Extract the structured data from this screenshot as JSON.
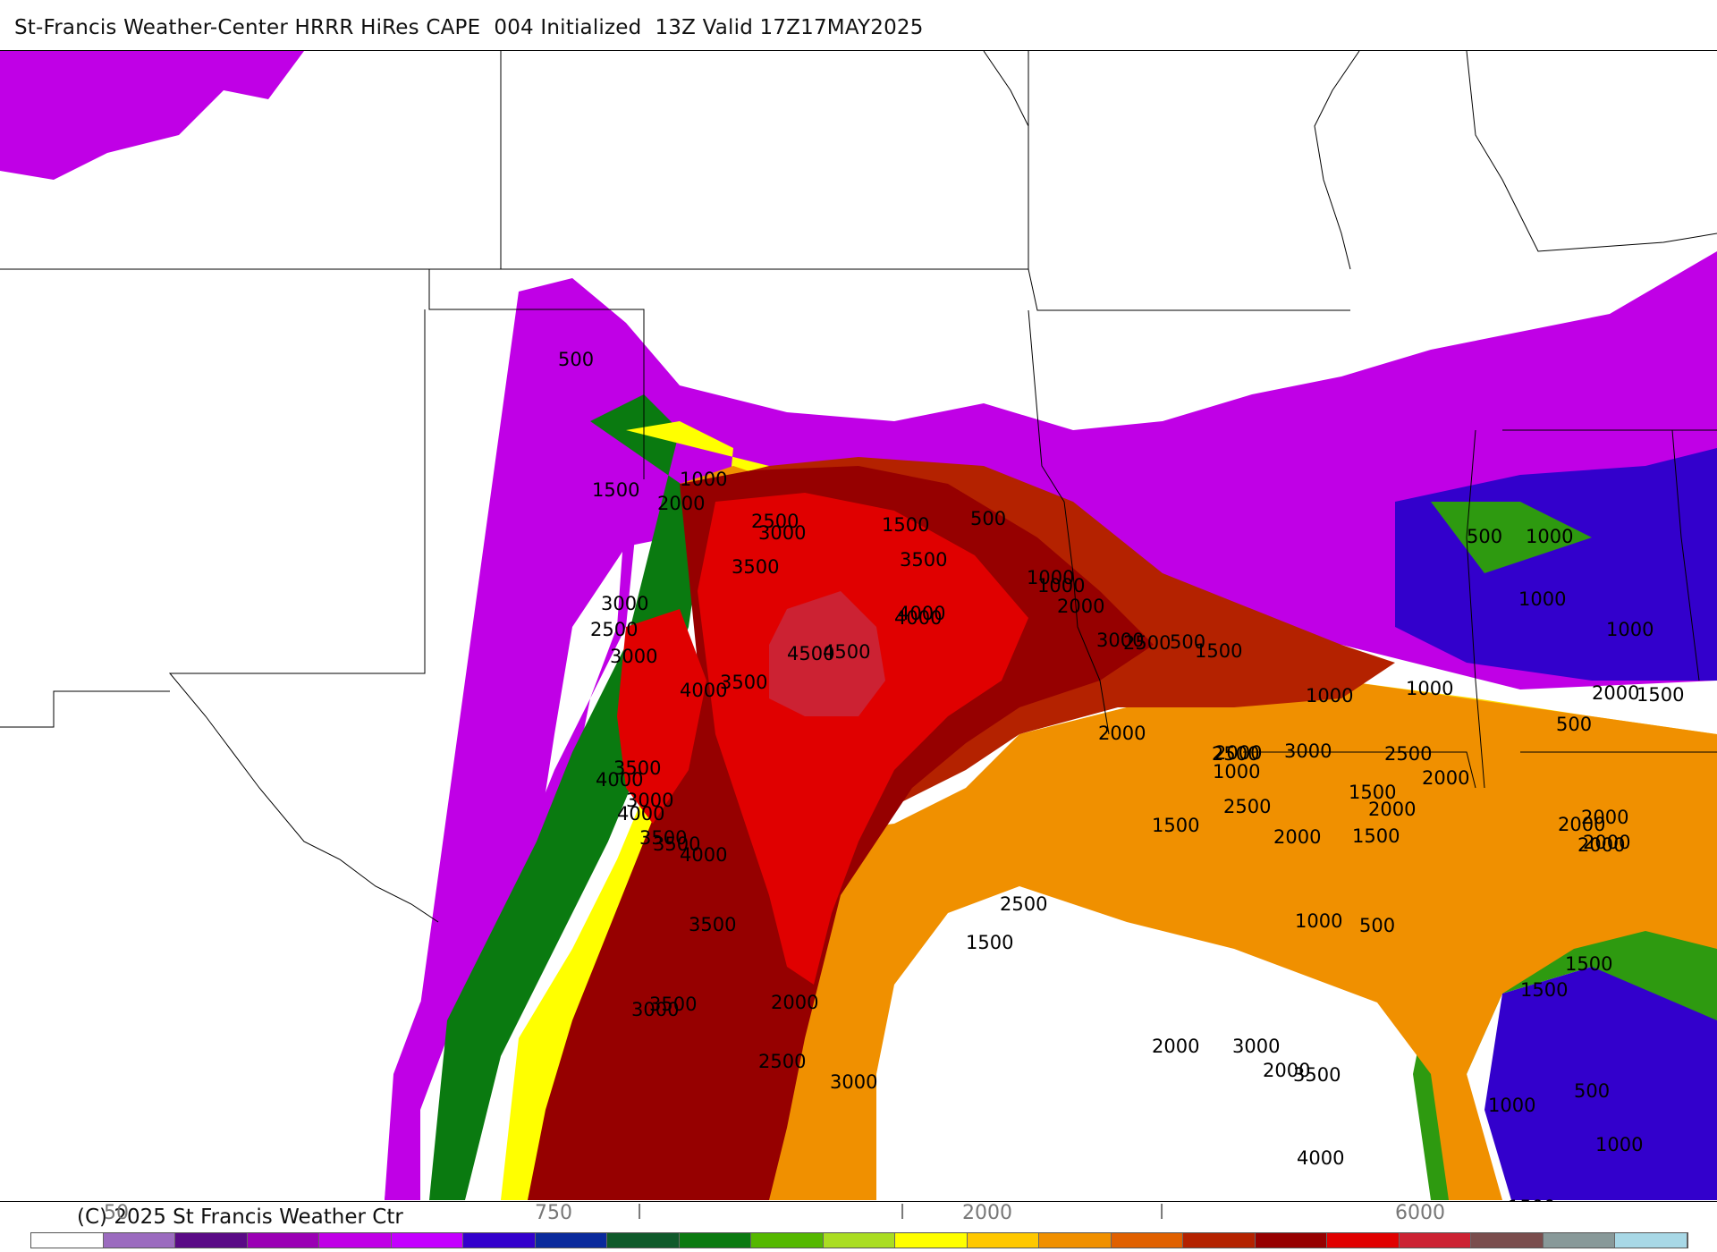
{
  "title": "St-Francis Weather-Center HRRR HiRes CAPE  004 Initialized  13Z Valid 17Z17MAY2025",
  "credit": "(C) 2025 St Francis Weather Ctr",
  "colorbar": {
    "colors": [
      "#ffffff",
      "#9b6bbf",
      "#5a0a86",
      "#9a00b4",
      "#c000e6",
      "#c400ff",
      "#3300cc",
      "#0a2a9c",
      "#0f5a2a",
      "#0a7a10",
      "#55b800",
      "#aadd22",
      "#ffff00",
      "#ffc800",
      "#f09000",
      "#e06000",
      "#b42200",
      "#960000",
      "#e00000",
      "#cc2233",
      "#7a4d4d",
      "#889999",
      "#a8d8e6"
    ],
    "tick_labels": [
      {
        "label": "50"
      },
      {
        "label": "750"
      },
      {
        "label": "l"
      },
      {
        "label": "l"
      },
      {
        "label": "2000"
      },
      {
        "label": "l"
      },
      {
        "label": "6000"
      }
    ]
  },
  "contour_labels": [
    {
      "text": "500"
    },
    {
      "text": "1000"
    },
    {
      "text": "1500"
    },
    {
      "text": "2000"
    },
    {
      "text": "2500"
    },
    {
      "text": "3000"
    },
    {
      "text": "3500"
    },
    {
      "text": "4000"
    },
    {
      "text": "4500"
    },
    {
      "text": "1500"
    },
    {
      "text": "500"
    },
    {
      "text": "1000"
    },
    {
      "text": "2000"
    },
    {
      "text": "3000"
    },
    {
      "text": "2500"
    },
    {
      "text": "1500"
    },
    {
      "text": "3500"
    },
    {
      "text": "4000"
    },
    {
      "text": "4500"
    },
    {
      "text": "3500"
    },
    {
      "text": "4000"
    },
    {
      "text": "3000"
    },
    {
      "text": "2500"
    },
    {
      "text": "3000"
    },
    {
      "text": "3500"
    },
    {
      "text": "4000"
    },
    {
      "text": "3000"
    },
    {
      "text": "4000"
    },
    {
      "text": "3500"
    },
    {
      "text": "3500"
    },
    {
      "text": "4000"
    },
    {
      "text": "3500"
    },
    {
      "text": "3500"
    },
    {
      "text": "3000"
    },
    {
      "text": "2000"
    },
    {
      "text": "2500"
    },
    {
      "text": "3000"
    },
    {
      "text": "2500"
    },
    {
      "text": "1500"
    },
    {
      "text": "2000"
    },
    {
      "text": "2500"
    },
    {
      "text": "1000"
    },
    {
      "text": "500"
    },
    {
      "text": "1000"
    },
    {
      "text": "3000"
    },
    {
      "text": "2500"
    },
    {
      "text": "2000"
    },
    {
      "text": "1500"
    },
    {
      "text": "2000"
    },
    {
      "text": "2000"
    },
    {
      "text": "2000"
    },
    {
      "text": "2000"
    },
    {
      "text": "1500"
    },
    {
      "text": "2000"
    },
    {
      "text": "2000"
    },
    {
      "text": "500"
    },
    {
      "text": "1000"
    },
    {
      "text": "1000"
    },
    {
      "text": "1000"
    },
    {
      "text": "1000"
    },
    {
      "text": "500"
    },
    {
      "text": "1500"
    },
    {
      "text": "2000"
    },
    {
      "text": "2000"
    },
    {
      "text": "2000"
    },
    {
      "text": "1500"
    },
    {
      "text": "1500"
    },
    {
      "text": "500"
    },
    {
      "text": "1000"
    },
    {
      "text": "1000"
    },
    {
      "text": "1500"
    },
    {
      "text": "500"
    },
    {
      "text": "1000"
    },
    {
      "text": "1000"
    },
    {
      "text": "2500"
    },
    {
      "text": "1500"
    },
    {
      "text": "2000"
    },
    {
      "text": "3000"
    },
    {
      "text": "3500"
    },
    {
      "text": "4000"
    }
  ]
}
